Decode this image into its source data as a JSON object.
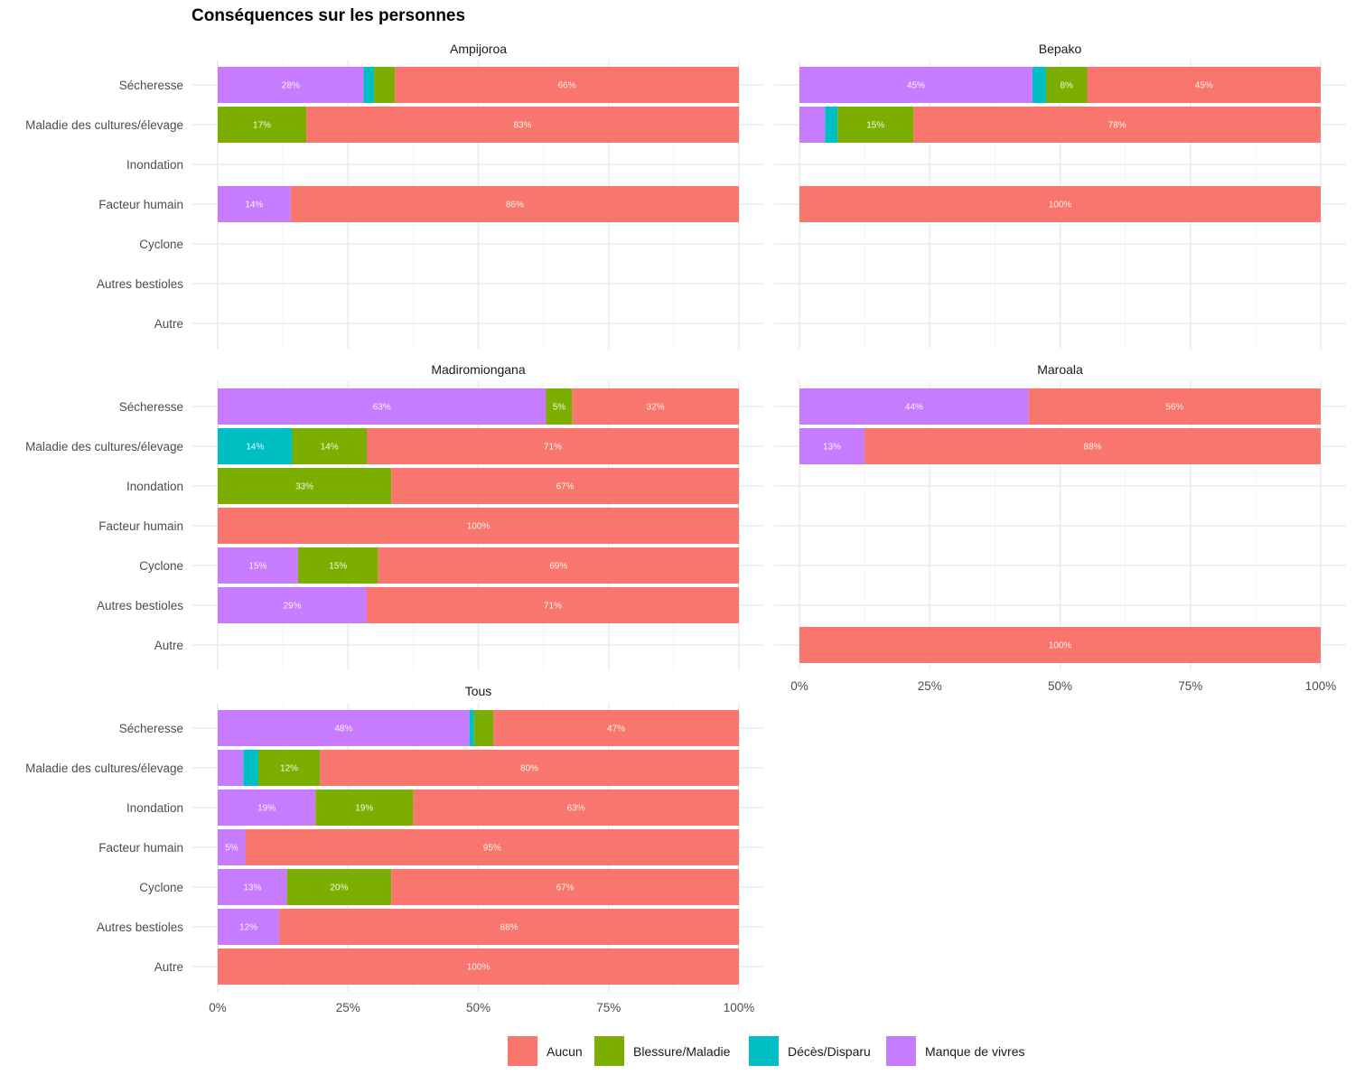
{
  "chart_data": {
    "type": "bar",
    "orientation": "horizontal-stacked-percent",
    "title": "Conséquences sur les personnes",
    "xlabel": "",
    "ylabel": "",
    "xlim": [
      0,
      100
    ],
    "x_ticks": [
      "0%",
      "25%",
      "50%",
      "75%",
      "100%"
    ],
    "grid": true,
    "legend_position": "bottom",
    "categories": [
      "Sécheresse",
      "Maladie des cultures/élevage",
      "Inondation",
      "Facteur humain",
      "Cyclone",
      "Autres bestioles",
      "Autre"
    ],
    "series_names": [
      "Manque de vivres",
      "Décès/Disparu",
      "Blessure/Maladie",
      "Aucun"
    ],
    "legend": [
      {
        "name": "Aucun",
        "color": "#F8766D"
      },
      {
        "name": "Blessure/Maladie",
        "color": "#7CAE00"
      },
      {
        "name": "Décès/Disparu",
        "color": "#00BFC4"
      },
      {
        "name": "Manque de vivres",
        "color": "#C77CFF"
      }
    ],
    "panels": [
      {
        "name": "Ampijoroa",
        "rows": [
          {
            "category": "Sécheresse",
            "values": [
              28,
              2,
              4,
              66
            ]
          },
          {
            "category": "Maladie des cultures/élevage",
            "values": [
              0,
              0,
              17,
              83
            ]
          },
          {
            "category": "Inondation",
            "values": null
          },
          {
            "category": "Facteur humain",
            "values": [
              14,
              0,
              0,
              86
            ]
          },
          {
            "category": "Cyclone",
            "values": null
          },
          {
            "category": "Autres bestioles",
            "values": null
          },
          {
            "category": "Autre",
            "values": null
          }
        ]
      },
      {
        "name": "Bepako",
        "rows": [
          {
            "category": "Sécheresse",
            "values": [
              44.7,
              2.6,
              7.9,
              44.8
            ]
          },
          {
            "category": "Maladie des cultures/élevage",
            "values": [
              4.9,
              2.4,
              14.6,
              78.1
            ]
          },
          {
            "category": "Inondation",
            "values": null
          },
          {
            "category": "Facteur humain",
            "values": [
              0,
              0,
              0,
              100
            ]
          },
          {
            "category": "Cyclone",
            "values": null
          },
          {
            "category": "Autres bestioles",
            "values": null
          },
          {
            "category": "Autre",
            "values": null
          }
        ]
      },
      {
        "name": "Madiromiongana",
        "rows": [
          {
            "category": "Sécheresse",
            "values": [
              63,
              0,
              5,
              32
            ]
          },
          {
            "category": "Maladie des cultures/élevage",
            "values": [
              0,
              14.3,
              14.3,
              71.4
            ]
          },
          {
            "category": "Inondation",
            "values": [
              0,
              0,
              33.3,
              66.7
            ]
          },
          {
            "category": "Facteur humain",
            "values": [
              0,
              0,
              0,
              100
            ]
          },
          {
            "category": "Cyclone",
            "values": [
              15.4,
              0,
              15.4,
              69.2
            ]
          },
          {
            "category": "Autres bestioles",
            "values": [
              28.6,
              0,
              0,
              71.4
            ]
          },
          {
            "category": "Autre",
            "values": null
          }
        ]
      },
      {
        "name": "Maroala",
        "rows": [
          {
            "category": "Sécheresse",
            "values": [
              44,
              0,
              0,
              56
            ]
          },
          {
            "category": "Maladie des cultures/élevage",
            "values": [
              12.5,
              0,
              0,
              87.5
            ]
          },
          {
            "category": "Inondation",
            "values": null
          },
          {
            "category": "Facteur humain",
            "values": null
          },
          {
            "category": "Cyclone",
            "values": null
          },
          {
            "category": "Autres bestioles",
            "values": null
          },
          {
            "category": "Autre",
            "values": [
              0,
              0,
              0,
              100
            ]
          }
        ]
      },
      {
        "name": "Tous",
        "rows": [
          {
            "category": "Sécheresse",
            "values": [
              48.3,
              0.9,
              3.7,
              47.1
            ]
          },
          {
            "category": "Maladie des cultures/élevage",
            "values": [
              4.9,
              2.9,
              11.8,
              80.4
            ]
          },
          {
            "category": "Inondation",
            "values": [
              18.75,
              0,
              18.75,
              62.5
            ]
          },
          {
            "category": "Facteur humain",
            "values": [
              5.3,
              0,
              0,
              94.7
            ]
          },
          {
            "category": "Cyclone",
            "values": [
              13.3,
              0,
              20,
              66.7
            ]
          },
          {
            "category": "Autres bestioles",
            "values": [
              11.8,
              0,
              0,
              88.2
            ]
          },
          {
            "category": "Autre",
            "values": [
              0,
              0,
              0,
              100
            ]
          }
        ]
      }
    ],
    "label_threshold_percent": 5
  }
}
